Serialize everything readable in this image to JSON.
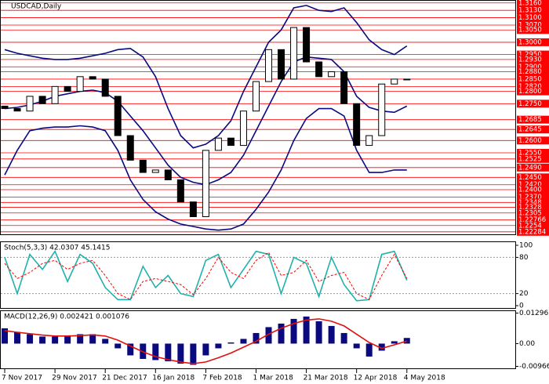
{
  "chart_data": [
    {
      "type": "candlestick",
      "title": "USDCAD,Daily",
      "xlim": [
        0,
        41
      ],
      "xticks": [
        {
          "value": 0,
          "label": "7 Nov 2017"
        },
        {
          "value": 4,
          "label": "29 Nov 2017"
        },
        {
          "value": 8,
          "label": "21 Dec 2017"
        },
        {
          "value": 12,
          "label": "16 Jan 2018"
        },
        {
          "value": 16,
          "label": "7 Feb 2018"
        },
        {
          "value": 20,
          "label": "1 Mar 2018"
        },
        {
          "value": 24,
          "label": "21 Mar 2018"
        },
        {
          "value": 28,
          "label": "12 Apr 2018"
        },
        {
          "value": 32,
          "label": "4 May 2018"
        }
      ],
      "ylim": [
        1.2215,
        1.3172
      ],
      "yticks": [
        {
          "value": 1.316,
          "label": "1.3160"
        },
        {
          "value": 1.313,
          "label": "1.3130"
        },
        {
          "value": 1.31,
          "label": "1.3100"
        },
        {
          "value": 1.307,
          "label": "1.3070"
        },
        {
          "value": 1.305,
          "label": "1.3050"
        },
        {
          "value": 1.3,
          "label": "1.3000"
        },
        {
          "value": 1.295,
          "label": "1.2950"
        },
        {
          "value": 1.293,
          "label": "1.2930"
        },
        {
          "value": 1.29,
          "label": "1.2900"
        },
        {
          "value": 1.288,
          "label": "1.2880"
        },
        {
          "value": 1.285,
          "label": "1.2850"
        },
        {
          "value": 1.282,
          "label": "1.2820"
        },
        {
          "value": 1.28,
          "label": "1.2800"
        },
        {
          "value": 1.275,
          "label": "1.2750"
        },
        1.2685,
        1.2645,
        {
          "value": 1.26,
          "label": "1.2600"
        },
        {
          "value": 1.255,
          "label": "1.2550"
        },
        1.2525,
        {
          "value": 1.249,
          "label": "1.2490"
        },
        {
          "value": 1.245,
          "label": "1.2450"
        },
        {
          "value": 1.242,
          "label": "1.2420"
        },
        {
          "value": 1.24,
          "label": "1.2400"
        },
        {
          "value": 1.237,
          "label": "1.2370"
        },
        1.2348,
        1.2328,
        1.2305,
        1.22766,
        1.2254,
        1.22284
      ],
      "level_color": "#ff0000",
      "open": [
        1.274,
        1.273,
        1.272,
        1.278,
        1.275,
        1.282,
        1.28,
        1.286,
        1.285,
        1.278,
        1.262,
        1.252,
        1.247,
        1.248,
        1.244,
        1.235,
        1.229,
        1.256,
        1.261,
        1.258,
        1.272,
        1.284,
        1.297,
        1.285,
        1.306,
        1.292,
        1.286,
        1.288,
        1.275,
        1.258,
        1.262,
        1.283,
        1.285
      ],
      "close": [
        1.273,
        1.272,
        1.278,
        1.275,
        1.282,
        1.28,
        1.286,
        1.285,
        1.278,
        1.262,
        1.252,
        1.247,
        1.248,
        1.244,
        1.235,
        1.229,
        1.256,
        1.261,
        1.258,
        1.272,
        1.284,
        1.297,
        1.285,
        1.306,
        1.292,
        1.286,
        1.288,
        1.275,
        1.258,
        1.262,
        1.283,
        1.285,
        1.285
      ],
      "bands": [
        {
          "color": "#0a0a80",
          "values": [
            1.297,
            1.2955,
            1.2945,
            1.2935,
            1.293,
            1.293,
            1.2935,
            1.2945,
            1.2955,
            1.297,
            1.2975,
            1.294,
            1.286,
            1.273,
            1.262,
            1.257,
            1.2585,
            1.262,
            1.268,
            1.28,
            1.29,
            1.3,
            1.305,
            1.314,
            1.315,
            1.313,
            1.3125,
            1.314,
            1.308,
            1.301,
            1.297,
            1.295,
            1.2985
          ]
        },
        {
          "color": "#0a0a80",
          "values": [
            1.273,
            1.2735,
            1.2745,
            1.276,
            1.278,
            1.279,
            1.28,
            1.2805,
            1.2795,
            1.276,
            1.27,
            1.264,
            1.257,
            1.25,
            1.245,
            1.243,
            1.242,
            1.244,
            1.247,
            1.254,
            1.264,
            1.274,
            1.284,
            1.292,
            1.294,
            1.2935,
            1.293,
            1.288,
            1.278,
            1.2735,
            1.272,
            1.2715,
            1.274
          ]
        },
        {
          "color": "#0a0a80",
          "values": [
            1.246,
            1.256,
            1.264,
            1.265,
            1.2655,
            1.2655,
            1.266,
            1.2655,
            1.264,
            1.256,
            1.244,
            1.236,
            1.231,
            1.228,
            1.226,
            1.225,
            1.224,
            1.2235,
            1.224,
            1.226,
            1.232,
            1.239,
            1.248,
            1.26,
            1.269,
            1.273,
            1.273,
            1.27,
            1.256,
            1.247,
            1.247,
            1.248,
            1.248
          ]
        }
      ]
    },
    {
      "type": "stochastic",
      "label": "Stoch(5,3,3) 42.0307 45.1415",
      "ylim": [
        0,
        100
      ],
      "yticks": [
        0,
        20,
        80,
        100
      ],
      "levels": [
        20,
        80
      ],
      "series": [
        {
          "color": "#20b2aa",
          "values": [
            80,
            20,
            85,
            60,
            90,
            40,
            85,
            70,
            30,
            10,
            10,
            65,
            30,
            50,
            20,
            15,
            75,
            85,
            30,
            60,
            90,
            85,
            20,
            80,
            70,
            15,
            80,
            35,
            8,
            10,
            85,
            90,
            42
          ]
        },
        {
          "color": "#ff0000",
          "dash": true,
          "values": [
            70,
            45,
            55,
            70,
            75,
            60,
            70,
            75,
            50,
            20,
            10,
            40,
            45,
            40,
            35,
            18,
            45,
            80,
            55,
            45,
            75,
            88,
            50,
            55,
            75,
            40,
            50,
            55,
            20,
            10,
            50,
            85,
            45
          ]
        }
      ]
    },
    {
      "type": "macd",
      "label": "MACD(12,26,9) 0.002421 0.001076",
      "ylim": [
        -0.0105,
        0.0138
      ],
      "yticks": [
        0.012965,
        {
          "value": 0,
          "label": "0.00"
        },
        -0.009665
      ],
      "histogram": {
        "color": "#0a0a80",
        "values": [
          0.0065,
          0.005,
          0.004,
          0.003,
          0.003,
          0.0035,
          0.004,
          0.004,
          0.002,
          -0.002,
          -0.005,
          -0.0065,
          -0.007,
          -0.0075,
          -0.0085,
          -0.009,
          -0.005,
          -0.002,
          0.0005,
          0.002,
          0.0045,
          0.007,
          0.0085,
          0.0105,
          0.0115,
          0.0095,
          0.0075,
          0.0045,
          -0.002,
          -0.0055,
          -0.003,
          0.001,
          0.0024
        ]
      },
      "signal": {
        "color": "#e01010",
        "values": [
          0.0055,
          0.0048,
          0.0042,
          0.0036,
          0.0032,
          0.0032,
          0.0034,
          0.0037,
          0.0032,
          0.0015,
          -0.001,
          -0.0035,
          -0.0055,
          -0.0068,
          -0.0078,
          -0.0085,
          -0.0078,
          -0.006,
          -0.004,
          -0.0015,
          0.001,
          0.004,
          0.0065,
          0.0085,
          0.01,
          0.0105,
          0.0095,
          0.0075,
          0.004,
          0.0005,
          -0.002,
          -0.0005,
          0.0011
        ]
      }
    }
  ]
}
